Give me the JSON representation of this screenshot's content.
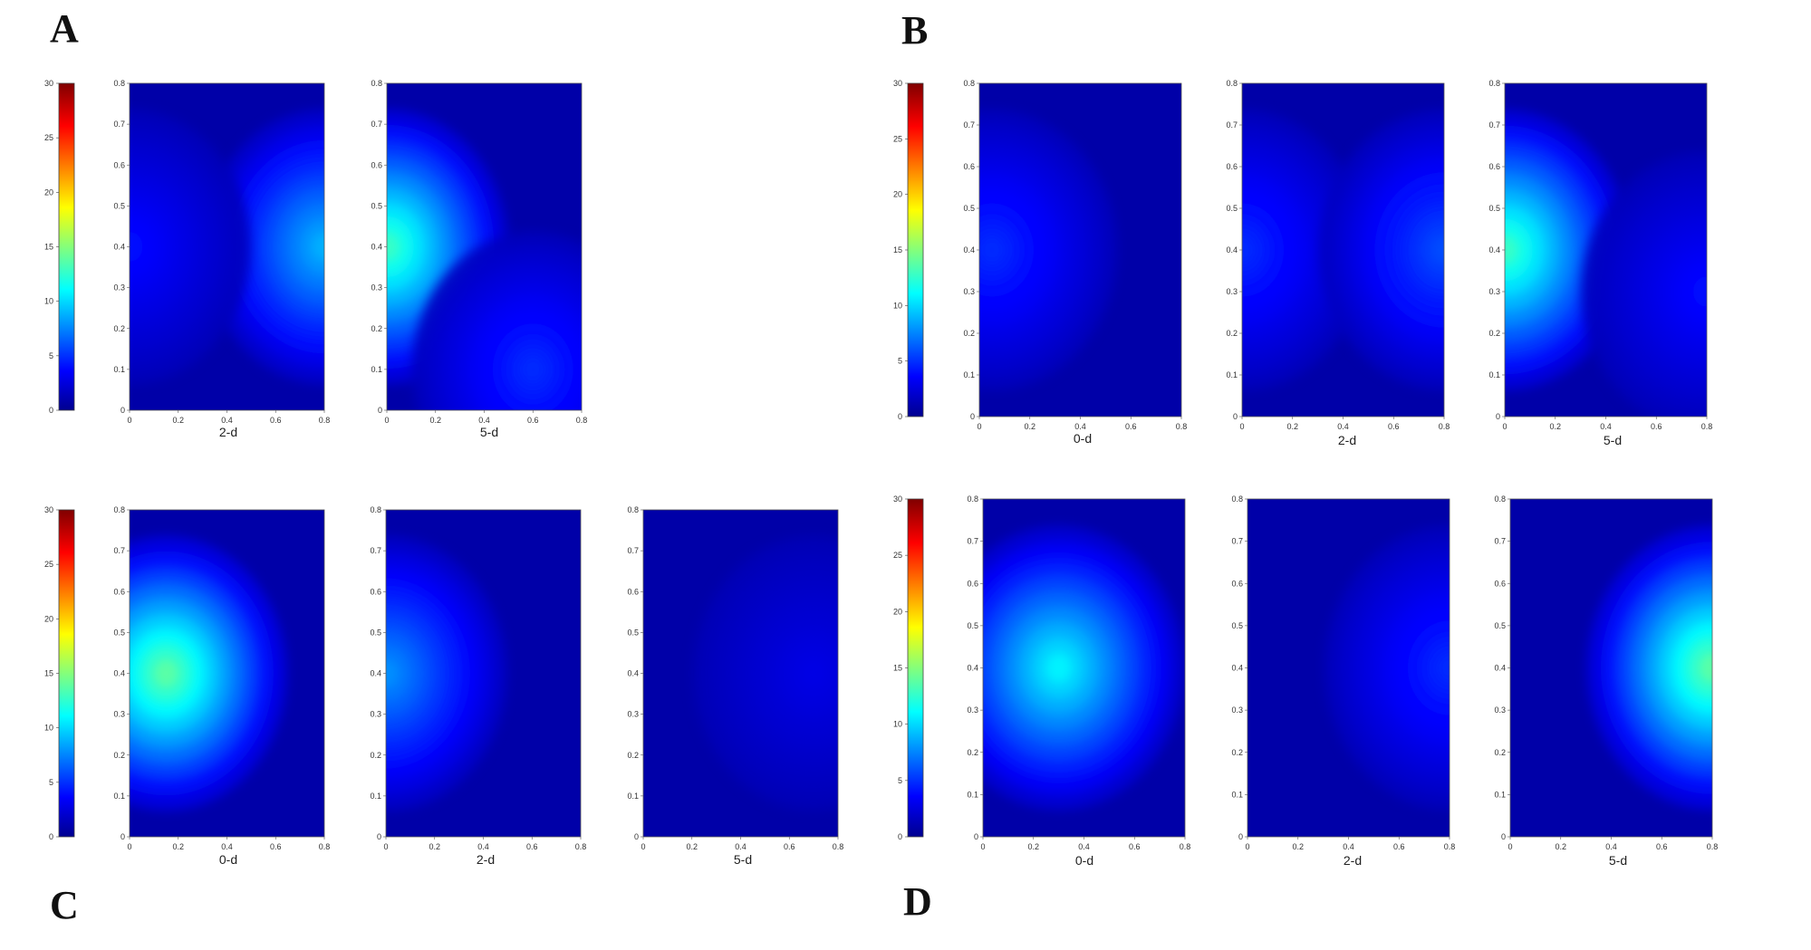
{
  "figure": {
    "colormap": "jet",
    "colors": {
      "low": "#00008f",
      "mid": "#00ffff",
      "high": "#800000"
    },
    "colorbar": {
      "range": [
        0,
        30
      ],
      "ticks": [
        "0",
        "5",
        "10",
        "15",
        "20",
        "25",
        "30"
      ]
    },
    "axis_ticks": [
      "0",
      "0.1",
      "0.2",
      "0.3",
      "0.4",
      "0.5",
      "0.6",
      "0.7",
      "0.8"
    ],
    "x_ticks": [
      "0",
      "0.2",
      "0.4",
      "0.6",
      "0.8"
    ],
    "panels": [
      {
        "letter": "A",
        "labels": [
          "2-d",
          "5-d"
        ]
      },
      {
        "letter": "B",
        "labels": [
          "0-d",
          "2-d",
          "5-d"
        ]
      },
      {
        "letter": "C",
        "labels": [
          "0-d",
          "2-d",
          "5-d"
        ]
      },
      {
        "letter": "D",
        "labels": [
          "0-d",
          "2-d",
          "5-d"
        ]
      }
    ]
  },
  "chart_data": [
    {
      "type": "heatmap",
      "panel": "A",
      "title": "2-d",
      "x": [
        0,
        0.8
      ],
      "y": [
        0,
        0.8
      ],
      "zlim": [
        0,
        30
      ],
      "hotspots": [
        {
          "x": 0.8,
          "y": 0.4,
          "value": 9
        },
        {
          "x": 0.0,
          "y": 0.4,
          "value": 4
        }
      ]
    },
    {
      "type": "heatmap",
      "panel": "A",
      "title": "5-d",
      "x": [
        0,
        0.8
      ],
      "y": [
        0,
        0.8
      ],
      "zlim": [
        0,
        30
      ],
      "hotspots": [
        {
          "x": 0.0,
          "y": 0.4,
          "value": 13
        },
        {
          "x": 0.6,
          "y": 0.1,
          "value": 5
        }
      ]
    },
    {
      "type": "heatmap",
      "panel": "B",
      "title": "0-d",
      "x": [
        0,
        0.8
      ],
      "y": [
        0,
        0.8
      ],
      "zlim": [
        0,
        30
      ],
      "hotspots": [
        {
          "x": 0.05,
          "y": 0.4,
          "value": 5
        }
      ]
    },
    {
      "type": "heatmap",
      "panel": "B",
      "title": "2-d",
      "x": [
        0,
        0.8
      ],
      "y": [
        0,
        0.8
      ],
      "zlim": [
        0,
        30
      ],
      "hotspots": [
        {
          "x": 0.0,
          "y": 0.4,
          "value": 5
        },
        {
          "x": 0.8,
          "y": 0.4,
          "value": 6
        }
      ]
    },
    {
      "type": "heatmap",
      "panel": "B",
      "title": "5-d",
      "x": [
        0,
        0.8
      ],
      "y": [
        0,
        0.8
      ],
      "zlim": [
        0,
        30
      ],
      "hotspots": [
        {
          "x": 0.0,
          "y": 0.4,
          "value": 13
        },
        {
          "x": 0.8,
          "y": 0.3,
          "value": 4
        }
      ]
    },
    {
      "type": "heatmap",
      "panel": "C",
      "title": "0-d",
      "x": [
        0,
        0.8
      ],
      "y": [
        0,
        0.8
      ],
      "zlim": [
        0,
        30
      ],
      "hotspots": [
        {
          "x": 0.15,
          "y": 0.4,
          "value": 14
        }
      ]
    },
    {
      "type": "heatmap",
      "panel": "C",
      "title": "2-d",
      "x": [
        0,
        0.8
      ],
      "y": [
        0,
        0.8
      ],
      "zlim": [
        0,
        30
      ],
      "hotspots": [
        {
          "x": 0.0,
          "y": 0.4,
          "value": 8
        }
      ]
    },
    {
      "type": "heatmap",
      "panel": "C",
      "title": "5-d",
      "x": [
        0,
        0.8
      ],
      "y": [
        0,
        0.8
      ],
      "zlim": [
        0,
        30
      ],
      "hotspots": [
        {
          "x": 0.7,
          "y": 0.4,
          "value": 3
        }
      ]
    },
    {
      "type": "heatmap",
      "panel": "D",
      "title": "0-d",
      "x": [
        0,
        0.8
      ],
      "y": [
        0,
        0.8
      ],
      "zlim": [
        0,
        30
      ],
      "hotspots": [
        {
          "x": 0.3,
          "y": 0.4,
          "value": 11
        }
      ]
    },
    {
      "type": "heatmap",
      "panel": "D",
      "title": "2-d",
      "x": [
        0,
        0.8
      ],
      "y": [
        0,
        0.8
      ],
      "zlim": [
        0,
        30
      ],
      "hotspots": [
        {
          "x": 0.8,
          "y": 0.4,
          "value": 5
        }
      ]
    },
    {
      "type": "heatmap",
      "panel": "D",
      "title": "5-d",
      "x": [
        0,
        0.8
      ],
      "y": [
        0,
        0.8
      ],
      "zlim": [
        0,
        30
      ],
      "hotspots": [
        {
          "x": 0.8,
          "y": 0.4,
          "value": 14
        }
      ]
    }
  ]
}
